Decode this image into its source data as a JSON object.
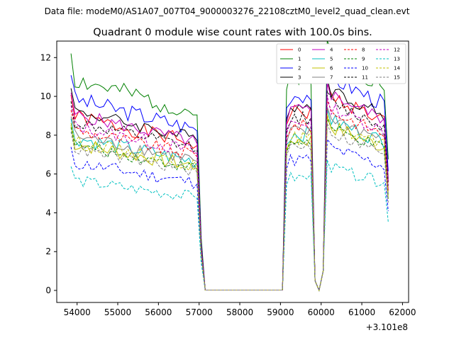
{
  "chart_data": {
    "type": "line",
    "suptitle": "Data file: modeM0/AS1A07_007T04_9000003276_22108cztM0_level2_quad_clean.evt",
    "title": "Quadrant 0 module wise count rates with 100.0s bins.",
    "xlabel": "",
    "ylabel": "",
    "offset_label": "+3.101e8",
    "xlim": [
      53500,
      62150
    ],
    "ylim": [
      -0.62,
      12.85
    ],
    "x_ticks": [
      54000,
      55000,
      56000,
      57000,
      58000,
      59000,
      60000,
      61000,
      62000
    ],
    "y_ticks": [
      0,
      2,
      4,
      6,
      8,
      10,
      12
    ],
    "legend_position": "top-right",
    "series": [
      {
        "name": "0",
        "color": "#ff0000",
        "dash": "solid",
        "level": 9.0,
        "amp": 0.4,
        "seed": 1
      },
      {
        "name": "1",
        "color": "#008000",
        "dash": "solid",
        "level": 10.9,
        "amp": 0.5,
        "seed": 2
      },
      {
        "name": "2",
        "color": "#0000ff",
        "dash": "solid",
        "level": 9.9,
        "amp": 0.45,
        "seed": 3
      },
      {
        "name": "3",
        "color": "#000000",
        "dash": "solid",
        "level": 9.3,
        "amp": 0.35,
        "seed": 4
      },
      {
        "name": "4",
        "color": "#c000c0",
        "dash": "solid",
        "level": 9.1,
        "amp": 0.35,
        "seed": 5
      },
      {
        "name": "5",
        "color": "#00c0c0",
        "dash": "solid",
        "level": 7.9,
        "amp": 0.4,
        "seed": 6
      },
      {
        "name": "6",
        "color": "#c0c000",
        "dash": "solid",
        "level": 7.6,
        "amp": 0.4,
        "seed": 7
      },
      {
        "name": "7",
        "color": "#808080",
        "dash": "solid",
        "level": 8.0,
        "amp": 0.35,
        "seed": 8
      },
      {
        "name": "8",
        "color": "#ff0000",
        "dash": "dashed",
        "level": 8.3,
        "amp": 0.35,
        "seed": 9
      },
      {
        "name": "9",
        "color": "#008000",
        "dash": "dashed",
        "level": 7.5,
        "amp": 0.3,
        "seed": 10
      },
      {
        "name": "10",
        "color": "#0000ff",
        "dash": "dashed",
        "level": 6.6,
        "amp": 0.35,
        "seed": 11
      },
      {
        "name": "11",
        "color": "#000000",
        "dash": "dashed",
        "level": 8.7,
        "amp": 0.35,
        "seed": 12
      },
      {
        "name": "12",
        "color": "#c000c0",
        "dash": "dashed",
        "level": 8.5,
        "amp": 0.35,
        "seed": 13
      },
      {
        "name": "13",
        "color": "#00c0c0",
        "dash": "dashed",
        "level": 5.7,
        "amp": 0.3,
        "seed": 14
      },
      {
        "name": "14",
        "color": "#c0c000",
        "dash": "dashed",
        "level": 7.7,
        "amp": 0.35,
        "seed": 15
      },
      {
        "name": "15",
        "color": "#808080",
        "dash": "dashed",
        "level": 7.3,
        "amp": 0.3,
        "seed": 16
      }
    ],
    "time_profile": {
      "bin_seconds": 100,
      "start": 53850,
      "end": 61650,
      "segments": [
        {
          "from": 53850,
          "to": 56950,
          "state": "on",
          "trend": -0.12
        },
        {
          "from": 57050,
          "to": 57150,
          "state": "off"
        },
        {
          "from": 57150,
          "to": 59050,
          "state": "off"
        },
        {
          "from": 59150,
          "to": 59750,
          "state": "on",
          "trend": 0.0
        },
        {
          "from": 59850,
          "to": 59950,
          "state": "off"
        },
        {
          "from": 60050,
          "to": 60050,
          "state": "partial"
        },
        {
          "from": 60150,
          "to": 61550,
          "state": "on",
          "trend": -0.05
        },
        {
          "from": 61650,
          "to": 61650,
          "state": "partial"
        }
      ]
    }
  }
}
